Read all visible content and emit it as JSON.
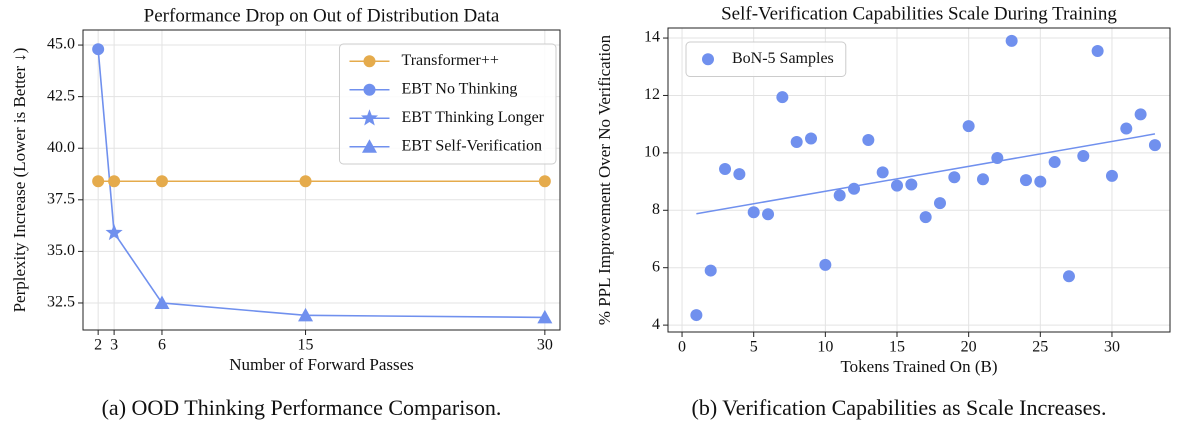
{
  "chart_data": [
    {
      "type": "line",
      "title": "Performance Drop on Out of Distribution Data",
      "xlabel": "Number of Forward Passes",
      "ylabel": "Perplexity Increase (Lower is Better ↓)",
      "caption": "(a) OOD Thinking Performance Comparison.",
      "x": [
        2,
        3,
        6,
        15,
        30
      ],
      "series": [
        {
          "name": "Transformer++",
          "color": "#e5ab4c",
          "marker": "circle",
          "values": [
            38.4,
            38.4,
            38.4,
            38.4,
            38.4
          ]
        },
        {
          "name": "EBT No Thinking",
          "color": "#7090ee",
          "marker": "circle",
          "values": [
            44.8,
            null,
            null,
            null,
            null
          ]
        },
        {
          "name": "EBT Thinking Longer",
          "color": "#7090ee",
          "marker": "star",
          "values": [
            null,
            35.9,
            null,
            null,
            null
          ]
        },
        {
          "name": "EBT Self-Verification",
          "color": "#7090ee",
          "marker": "triangle",
          "values": [
            null,
            null,
            32.5,
            31.9,
            31.8
          ]
        }
      ],
      "xlim": [
        1.05,
        30.95
      ],
      "xticks": [
        2,
        3,
        6,
        15,
        30
      ],
      "ylim": [
        31.19,
        45.73
      ],
      "yticks": [
        32.5,
        {
          "value": 35,
          "label": "35.0"
        },
        37.5,
        {
          "value": 40,
          "label": "40.0"
        },
        42.5,
        {
          "value": 45,
          "label": "45.0"
        }
      ],
      "grid": true,
      "legend": "upper right"
    },
    {
      "type": "scatter",
      "title": "Self-Verification Capabilities Scale During Training",
      "xlabel": "Tokens Trained On (B)",
      "ylabel": "% PPL Improvement Over No Verification",
      "caption": "(b) Verification Capabilities as Scale Increases.",
      "series": [
        {
          "name": "BoN-5 Samples",
          "color": "#7090ee",
          "x": [
            1,
            2,
            3,
            4,
            5,
            6,
            7,
            8,
            9,
            10,
            11,
            12,
            13,
            14,
            15,
            16,
            17,
            18,
            19,
            20,
            21,
            22,
            23,
            24,
            25,
            26,
            27,
            28,
            29,
            30,
            31,
            32,
            33
          ],
          "values": [
            4.35,
            5.9,
            9.44,
            9.26,
            7.93,
            7.86,
            11.94,
            10.38,
            10.5,
            6.1,
            8.52,
            8.75,
            10.45,
            9.32,
            8.86,
            8.9,
            7.76,
            8.25,
            9.15,
            10.93,
            9.08,
            9.82,
            13.9,
            9.05,
            9.0,
            9.68,
            5.7,
            9.89,
            13.55,
            9.2,
            10.85,
            11.34,
            10.27
          ]
        }
      ],
      "trendline": {
        "color": "#7090ee",
        "x": [
          1,
          33
        ],
        "values": [
          7.88,
          10.66
        ]
      },
      "xlim": [
        -0.98,
        34.05
      ],
      "xticks": [
        0,
        5,
        10,
        15,
        20,
        25,
        30
      ],
      "ylim": [
        3.76,
        14.35
      ],
      "yticks": [
        4,
        6,
        8,
        10,
        12,
        14
      ],
      "grid": true,
      "legend": "upper left"
    }
  ]
}
